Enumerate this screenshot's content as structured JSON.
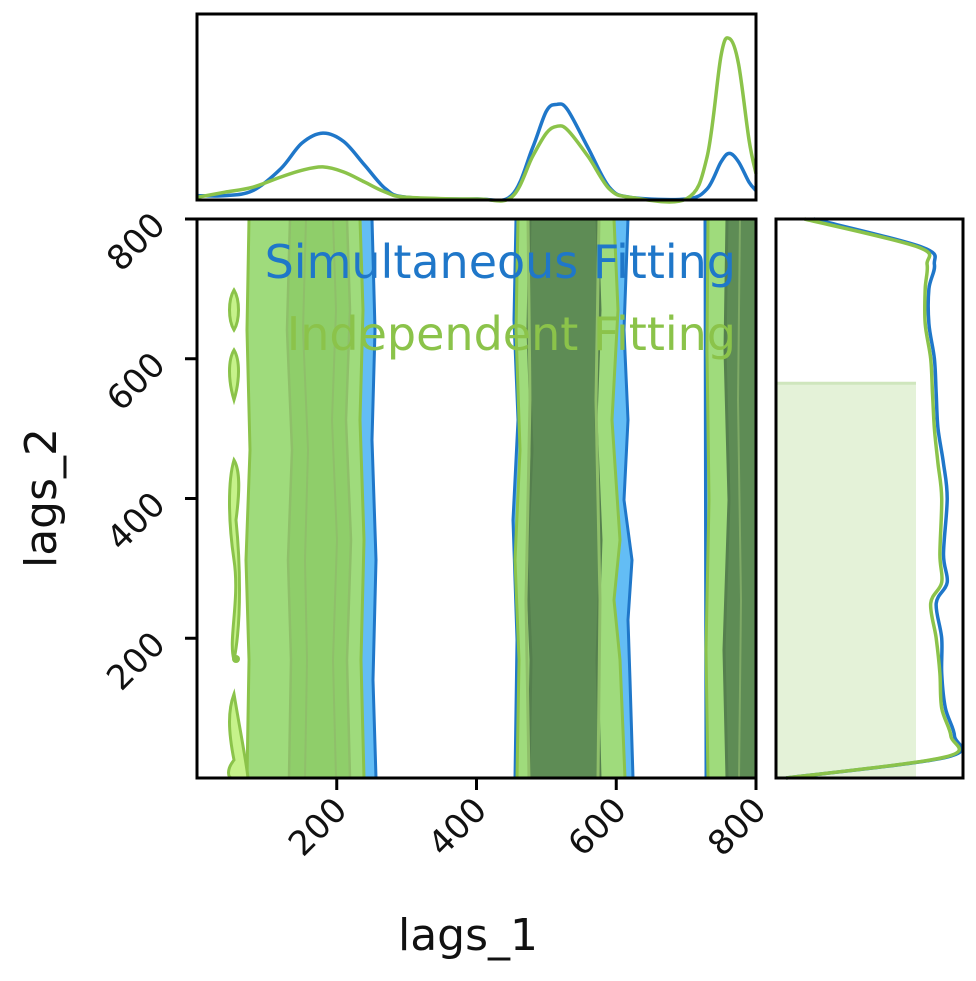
{
  "colors": {
    "simultaneous": "#1f77c9",
    "simultaneous_fill_light": "#63bdf5",
    "independent": "#8bc34a",
    "independent_fill_light": "#9fdb7c",
    "independent_fill_mid": "#8fce6a",
    "independent_fill_dark": "#5e8c55",
    "independent_outer": "#c6f28a",
    "marginal_fill": "#e4f2d8"
  },
  "chart_data": {
    "type": "area",
    "description_kind": "joint density contour plot with marginal distributions",
    "xlabel": "lags_1",
    "ylabel": "lags_2",
    "xlim": [
      0,
      800
    ],
    "ylim": [
      0,
      800
    ],
    "x_ticks": [
      200,
      400,
      600,
      800
    ],
    "y_ticks": [
      200,
      400,
      600,
      800
    ],
    "x_tick_labels": [
      "200",
      "400",
      "600",
      "800"
    ],
    "y_tick_labels": [
      "200",
      "400",
      "600",
      "800"
    ],
    "legend": [
      {
        "label": "Simultaneous Fitting",
        "color": "#1f77c9"
      },
      {
        "label": "Independent Fitting",
        "color": "#8bc34a"
      }
    ],
    "legend_position": "top-right",
    "series": [
      {
        "name": "Simultaneous Fitting",
        "x_marginal": [
          [
            0,
            0.02
          ],
          [
            40,
            0.02
          ],
          [
            80,
            0.05
          ],
          [
            120,
            0.18
          ],
          [
            150,
            0.33
          ],
          [
            180,
            0.39
          ],
          [
            210,
            0.34
          ],
          [
            240,
            0.2
          ],
          [
            270,
            0.06
          ],
          [
            300,
            0.01
          ],
          [
            400,
            0.0
          ],
          [
            450,
            0.02
          ],
          [
            480,
            0.3
          ],
          [
            500,
            0.52
          ],
          [
            515,
            0.56
          ],
          [
            530,
            0.53
          ],
          [
            560,
            0.3
          ],
          [
            590,
            0.07
          ],
          [
            620,
            0.01
          ],
          [
            700,
            0.0
          ],
          [
            730,
            0.06
          ],
          [
            750,
            0.22
          ],
          [
            762,
            0.27
          ],
          [
            775,
            0.22
          ],
          [
            790,
            0.1
          ],
          [
            800,
            0.05
          ]
        ],
        "y_marginal": [
          [
            0,
            0.05
          ],
          [
            30,
            0.93
          ],
          [
            60,
            0.97
          ],
          [
            100,
            0.92
          ],
          [
            150,
            0.9
          ],
          [
            200,
            0.9
          ],
          [
            250,
            0.87
          ],
          [
            280,
            0.93
          ],
          [
            320,
            0.91
          ],
          [
            400,
            0.93
          ],
          [
            450,
            0.91
          ],
          [
            500,
            0.88
          ],
          [
            550,
            0.87
          ],
          [
            600,
            0.86
          ],
          [
            650,
            0.83
          ],
          [
            700,
            0.83
          ],
          [
            735,
            0.86
          ],
          [
            760,
            0.79
          ],
          [
            800,
            0.2
          ]
        ],
        "contour_bands_x": [
          [
            75,
            255
          ],
          [
            450,
            625
          ],
          [
            720,
            800
          ]
        ]
      },
      {
        "name": "Independent Fitting",
        "x_marginal": [
          [
            0,
            0.01
          ],
          [
            40,
            0.04
          ],
          [
            80,
            0.07
          ],
          [
            120,
            0.13
          ],
          [
            150,
            0.17
          ],
          [
            180,
            0.19
          ],
          [
            210,
            0.16
          ],
          [
            240,
            0.1
          ],
          [
            270,
            0.04
          ],
          [
            300,
            0.01
          ],
          [
            400,
            0.0
          ],
          [
            450,
            0.01
          ],
          [
            480,
            0.25
          ],
          [
            500,
            0.39
          ],
          [
            515,
            0.43
          ],
          [
            530,
            0.41
          ],
          [
            560,
            0.25
          ],
          [
            590,
            0.06
          ],
          [
            620,
            0.01
          ],
          [
            700,
            0.0
          ],
          [
            730,
            0.25
          ],
          [
            750,
            0.85
          ],
          [
            762,
            0.95
          ],
          [
            775,
            0.8
          ],
          [
            790,
            0.35
          ],
          [
            800,
            0.15
          ]
        ],
        "y_marginal": [
          [
            0,
            0.05
          ],
          [
            30,
            0.92
          ],
          [
            60,
            0.95
          ],
          [
            100,
            0.9
          ],
          [
            150,
            0.89
          ],
          [
            200,
            0.87
          ],
          [
            250,
            0.84
          ],
          [
            280,
            0.9
          ],
          [
            320,
            0.89
          ],
          [
            400,
            0.9
          ],
          [
            450,
            0.88
          ],
          [
            500,
            0.86
          ],
          [
            550,
            0.85
          ],
          [
            600,
            0.84
          ],
          [
            650,
            0.81
          ],
          [
            700,
            0.81
          ],
          [
            735,
            0.82
          ],
          [
            760,
            0.77
          ],
          [
            800,
            0.15
          ]
        ],
        "contour_bands_x": [
          [
            40,
            240
          ],
          [
            455,
            610
          ],
          [
            725,
            800
          ]
        ]
      }
    ],
    "y_marginal_shaded_below": 565
  }
}
